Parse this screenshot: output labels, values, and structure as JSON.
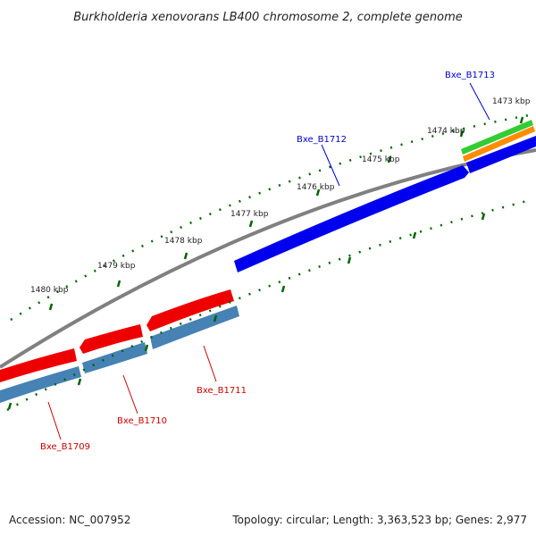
{
  "title": "Burkholderia xenovorans LB400 chromosome 2, complete genome",
  "footer": {
    "accession": "Accession: NC_007952",
    "summary": "Topology: circular; Length: 3,363,523 bp; Genes: 2,977"
  },
  "ruler": {
    "tick_labels": [
      "1473 kbp",
      "1474 kbp",
      "1475 kbp",
      "1476 kbp",
      "1477 kbp",
      "1478 kbp",
      "1479 kbp",
      "1480 kbp"
    ]
  },
  "genes": [
    {
      "name": "Bxe_B1713",
      "label_color": "#0000cc"
    },
    {
      "name": "Bxe_B1712",
      "label_color": "#0000cc"
    },
    {
      "name": "Bxe_B1711",
      "label_color": "#cc0000"
    },
    {
      "name": "Bxe_B1710",
      "label_color": "#cc0000"
    },
    {
      "name": "Bxe_B1709",
      "label_color": "#cc0000"
    }
  ],
  "colors": {
    "forward_cds": "#0000ee",
    "reverse_cds": "#ee0000",
    "gc_track": "#4682b4",
    "rna_green": "#33cc33",
    "rna_orange": "#ff8c00",
    "backbone": "#808080",
    "tick_marks": "#006400"
  }
}
